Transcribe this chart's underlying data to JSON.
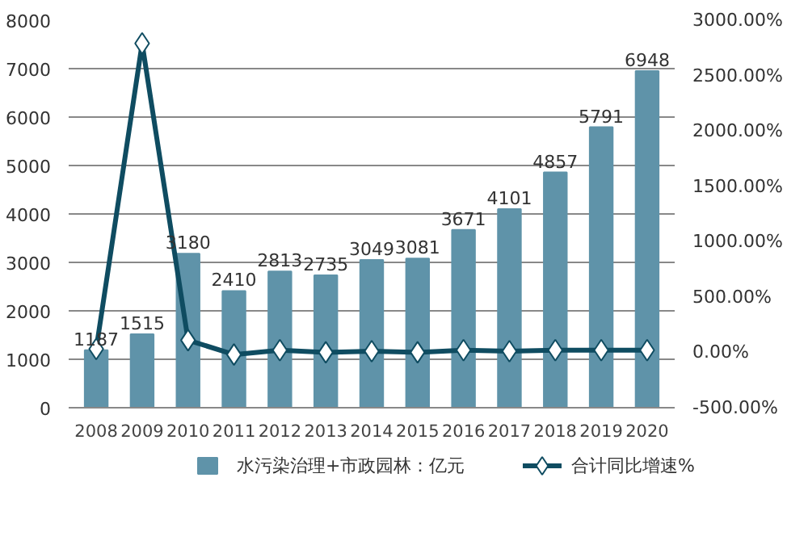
{
  "chart_data": {
    "type": "bar",
    "categories": [
      "2008",
      "2009",
      "2010",
      "2011",
      "2012",
      "2013",
      "2014",
      "2015",
      "2016",
      "2017",
      "2018",
      "2019",
      "2020"
    ],
    "series": [
      {
        "name": "水污染治理+市政园林：亿元",
        "color": "#5f93a9",
        "values": [
          1187,
          1515,
          3180,
          2410,
          2813,
          2735,
          3049,
          3081,
          3671,
          4101,
          4857,
          5791,
          6948
        ],
        "value_labels": [
          "1187",
          "1515",
          "3180",
          "2410",
          "2813",
          "2735",
          "3049",
          "3081",
          "3671",
          "4101",
          "4857",
          "5791",
          "6948"
        ]
      },
      {
        "name": "合计同比增速%",
        "type": "line",
        "axis": "y2",
        "color": "#0f4c61",
        "marker": "diamond",
        "values": [
          30,
          2790,
          110,
          -20,
          20,
          0,
          10,
          0,
          20,
          10,
          20,
          20,
          20
        ]
      }
    ],
    "ylim": [
      0,
      8000
    ],
    "yticks": [
      0,
      1000,
      2000,
      3000,
      4000,
      5000,
      6000,
      7000,
      8000
    ],
    "y2lim": [
      -500,
      3000
    ],
    "y2ticks": [
      {
        "value": -500,
        "label": "-500.00%"
      },
      {
        "value": 0,
        "label": "0.00%"
      },
      {
        "value": 500,
        "label": "500.00%"
      },
      {
        "value": 1000,
        "label": "1000.00%"
      },
      {
        "value": 1500,
        "label": "1500.00%"
      },
      {
        "value": 2000,
        "label": "2000.00%"
      },
      {
        "value": 2500,
        "label": "2500.00%"
      },
      {
        "value": 3000,
        "label": "3000.00%"
      }
    ],
    "grid": "y",
    "legend": "bottom"
  }
}
